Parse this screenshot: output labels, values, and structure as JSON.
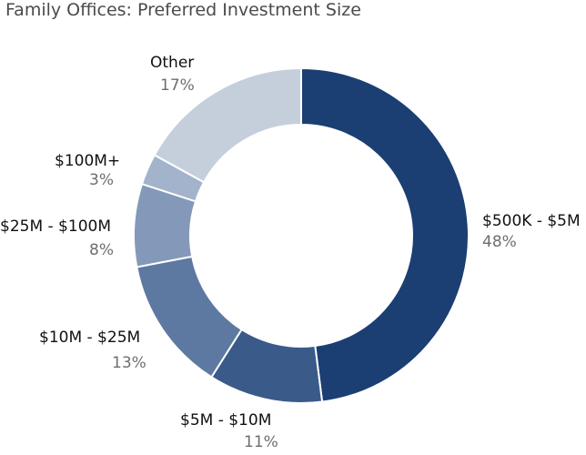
{
  "chart_data": {
    "type": "pie",
    "title": "Family Offices: Preferred Investment Size",
    "slices": [
      {
        "label": "$500K - $5M",
        "value": 48,
        "value_label": "48%",
        "color": "#1b3e73"
      },
      {
        "label": "$5M - $10M",
        "value": 11,
        "value_label": "11%",
        "color": "#3a5a8a"
      },
      {
        "label": "$10M - $25M",
        "value": 13,
        "value_label": "13%",
        "color": "#5e79a1"
      },
      {
        "label": "$25M - $100M",
        "value": 8,
        "value_label": "8%",
        "color": "#8499b9"
      },
      {
        "label": "$100M+",
        "value": 3,
        "value_label": "3%",
        "color": "#a2b3cb"
      },
      {
        "label": "Other",
        "value": 17,
        "value_label": "17%",
        "color": "#c5cfdc"
      }
    ]
  }
}
